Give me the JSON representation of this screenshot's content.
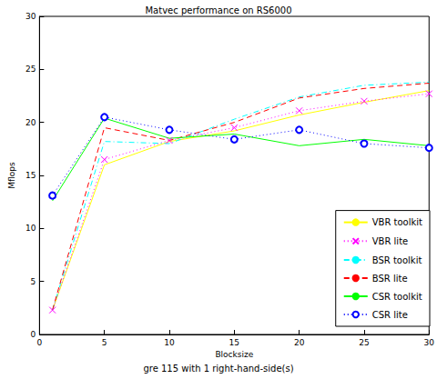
{
  "chart_data": {
    "type": "line",
    "title": "Matvec performance on RS6000",
    "subtitle": "gre 115 with 1 right-hand-side(s)",
    "x_label": "Blocksize",
    "y_label": "Mflops",
    "x": [
      1,
      5,
      10,
      15,
      20,
      25,
      30
    ],
    "xlim": [
      0,
      30
    ],
    "xticks": [
      0,
      5,
      10,
      15,
      20,
      25,
      30
    ],
    "ylim": [
      0,
      30
    ],
    "yticks": [
      0,
      5,
      10,
      15,
      20,
      25,
      30
    ],
    "grid": false,
    "legend": "lower right",
    "series": [
      {
        "name": "VBR toolkit",
        "color": "#ffff00",
        "line_style": "solid",
        "marker": "none",
        "values": [
          2.3,
          16.0,
          18.2,
          19.2,
          20.7,
          21.9,
          23.0
        ]
      },
      {
        "name": "VBR lite",
        "color": "#ff00ff",
        "line_style": "dotted",
        "marker": "x",
        "values": [
          2.3,
          16.5,
          18.3,
          19.5,
          21.1,
          22.0,
          22.7
        ]
      },
      {
        "name": "BSR toolkit",
        "color": "#00ffff",
        "line_style": "dashdot",
        "marker": "none",
        "values": [
          2.3,
          18.2,
          18.0,
          20.3,
          22.4,
          23.5,
          23.8
        ]
      },
      {
        "name": "BSR lite",
        "color": "#ff0000",
        "line_style": "dashed",
        "marker": "none",
        "values": [
          2.3,
          19.5,
          18.3,
          20.0,
          22.3,
          23.2,
          23.7
        ]
      },
      {
        "name": "CSR toolkit",
        "color": "#00ff00",
        "line_style": "solid",
        "marker": "none",
        "values": [
          12.6,
          20.4,
          18.5,
          18.9,
          17.8,
          18.4,
          17.8
        ]
      },
      {
        "name": "CSR lite",
        "color": "#0000ff",
        "line_style": "dotted",
        "marker": "circle",
        "values": [
          13.1,
          20.5,
          19.3,
          18.4,
          19.3,
          18.0,
          17.6
        ]
      }
    ]
  }
}
